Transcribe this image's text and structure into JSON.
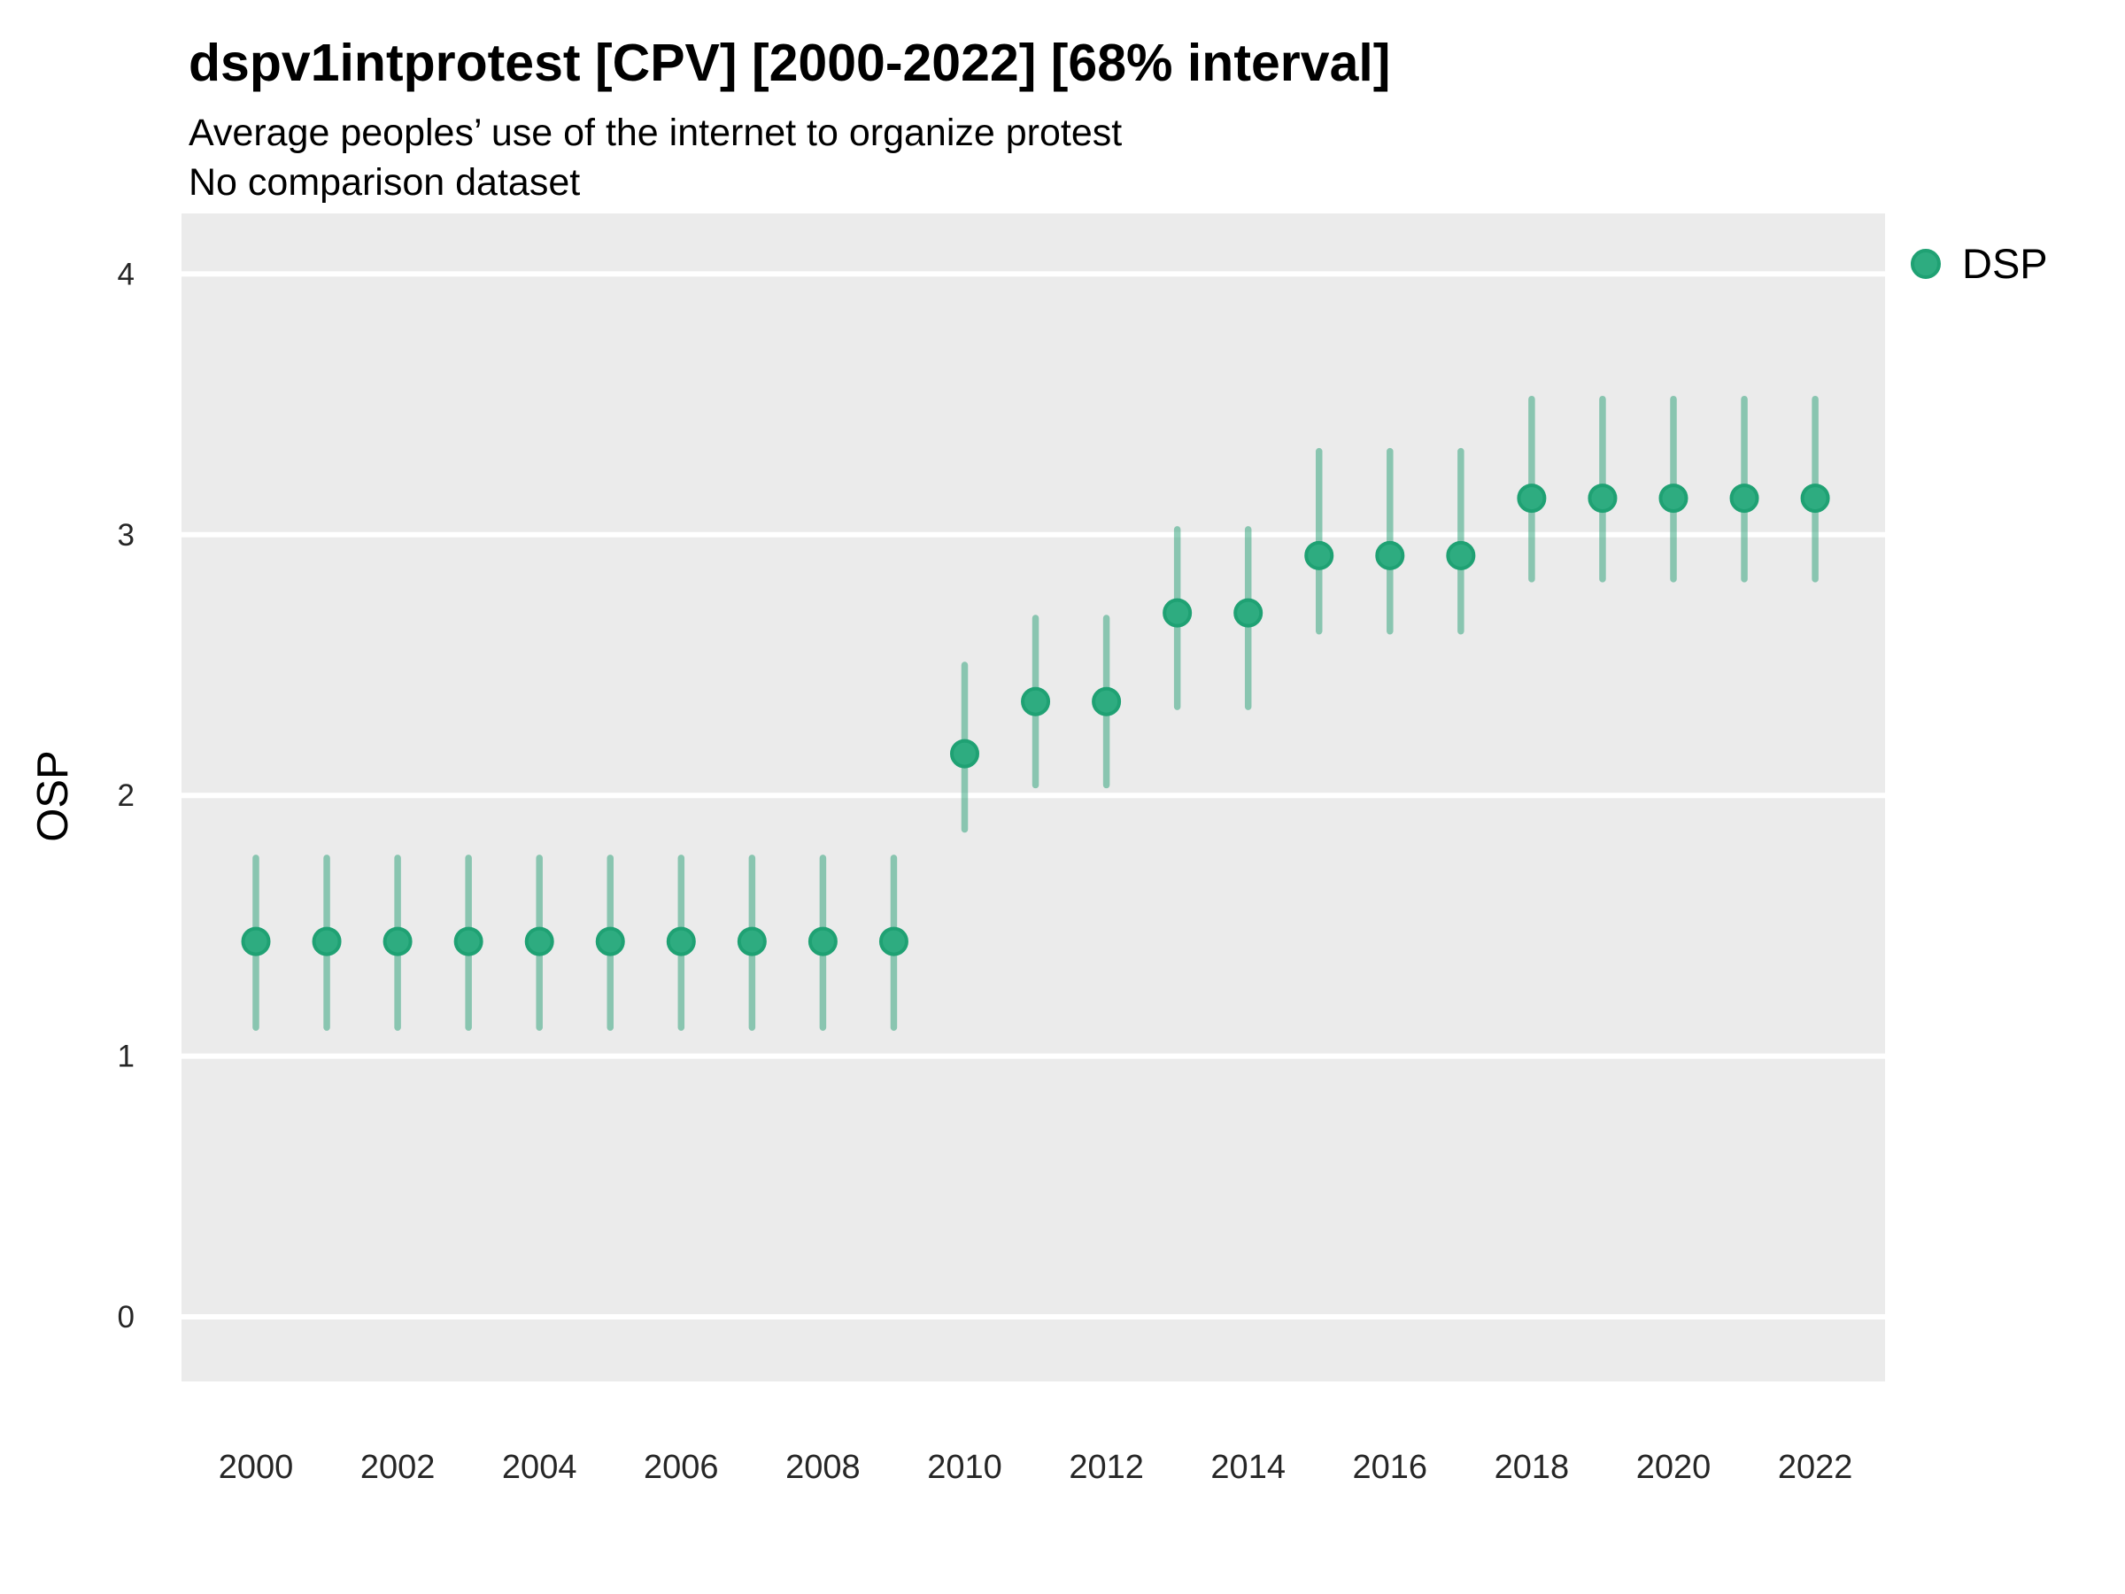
{
  "header": {
    "title": "dspv1intprotest [CPV] [2000-2022] [68% interval]",
    "subtitle": "Average peoples’ use of the internet to organize protest",
    "note": "No comparison dataset"
  },
  "legend": {
    "position": "right",
    "items": [
      {
        "label": "DSP",
        "color": "#2EAC80"
      }
    ]
  },
  "axes": {
    "y_title": "OSP",
    "x_title": "",
    "y_ticks": [
      0,
      1,
      2,
      3,
      4
    ],
    "x_ticks": [
      2000,
      2002,
      2004,
      2006,
      2008,
      2010,
      2012,
      2014,
      2016,
      2018,
      2020,
      2022
    ]
  },
  "colors": {
    "point_fill": "#2EAC80",
    "point_stroke": "#1FA173",
    "interval_line": "rgba(39, 160, 118, 0.5)",
    "panel_bg": "#EBEBEB",
    "gridline": "#FFFFFF",
    "tick_text": "#262626",
    "text": "#000000"
  },
  "chart_data": {
    "type": "pointrange",
    "title": "dspv1intprotest [CPV] [2000-2022] [68% interval]",
    "subtitle": "Average peoples’ use of the internet to organize protest",
    "note": "No comparison dataset",
    "interval_level": "68%",
    "xlabel": "",
    "ylabel": "OSP",
    "xlim": [
      1999,
      2023
    ],
    "ylim": [
      -0.25,
      4.25
    ],
    "y_ticks": [
      0,
      1,
      2,
      3,
      4
    ],
    "x_ticks": [
      2000,
      2002,
      2004,
      2006,
      2008,
      2010,
      2012,
      2014,
      2016,
      2018,
      2020,
      2022
    ],
    "grid": "horizontal major only, white on grey panel",
    "legend_position": "right",
    "series": [
      {
        "name": "DSP",
        "color": "#2EAC80",
        "points": [
          {
            "year": 2000,
            "value": 1.44,
            "low": 1.11,
            "high": 1.76
          },
          {
            "year": 2001,
            "value": 1.44,
            "low": 1.11,
            "high": 1.76
          },
          {
            "year": 2002,
            "value": 1.44,
            "low": 1.11,
            "high": 1.76
          },
          {
            "year": 2003,
            "value": 1.44,
            "low": 1.11,
            "high": 1.76
          },
          {
            "year": 2004,
            "value": 1.44,
            "low": 1.11,
            "high": 1.76
          },
          {
            "year": 2005,
            "value": 1.44,
            "low": 1.11,
            "high": 1.76
          },
          {
            "year": 2006,
            "value": 1.44,
            "low": 1.11,
            "high": 1.76
          },
          {
            "year": 2007,
            "value": 1.44,
            "low": 1.11,
            "high": 1.76
          },
          {
            "year": 2008,
            "value": 1.44,
            "low": 1.11,
            "high": 1.76
          },
          {
            "year": 2009,
            "value": 1.44,
            "low": 1.11,
            "high": 1.76
          },
          {
            "year": 2010,
            "value": 2.16,
            "low": 1.87,
            "high": 2.5
          },
          {
            "year": 2011,
            "value": 2.36,
            "low": 2.04,
            "high": 2.68
          },
          {
            "year": 2012,
            "value": 2.36,
            "low": 2.04,
            "high": 2.68
          },
          {
            "year": 2013,
            "value": 2.7,
            "low": 2.34,
            "high": 3.02
          },
          {
            "year": 2014,
            "value": 2.7,
            "low": 2.34,
            "high": 3.02
          },
          {
            "year": 2015,
            "value": 2.92,
            "low": 2.63,
            "high": 3.32
          },
          {
            "year": 2016,
            "value": 2.92,
            "low": 2.63,
            "high": 3.32
          },
          {
            "year": 2017,
            "value": 2.92,
            "low": 2.63,
            "high": 3.32
          },
          {
            "year": 2018,
            "value": 3.14,
            "low": 2.83,
            "high": 3.52
          },
          {
            "year": 2019,
            "value": 3.14,
            "low": 2.83,
            "high": 3.52
          },
          {
            "year": 2020,
            "value": 3.14,
            "low": 2.83,
            "high": 3.52
          },
          {
            "year": 2021,
            "value": 3.14,
            "low": 2.83,
            "high": 3.52
          },
          {
            "year": 2022,
            "value": 3.14,
            "low": 2.83,
            "high": 3.52
          }
        ]
      }
    ]
  }
}
